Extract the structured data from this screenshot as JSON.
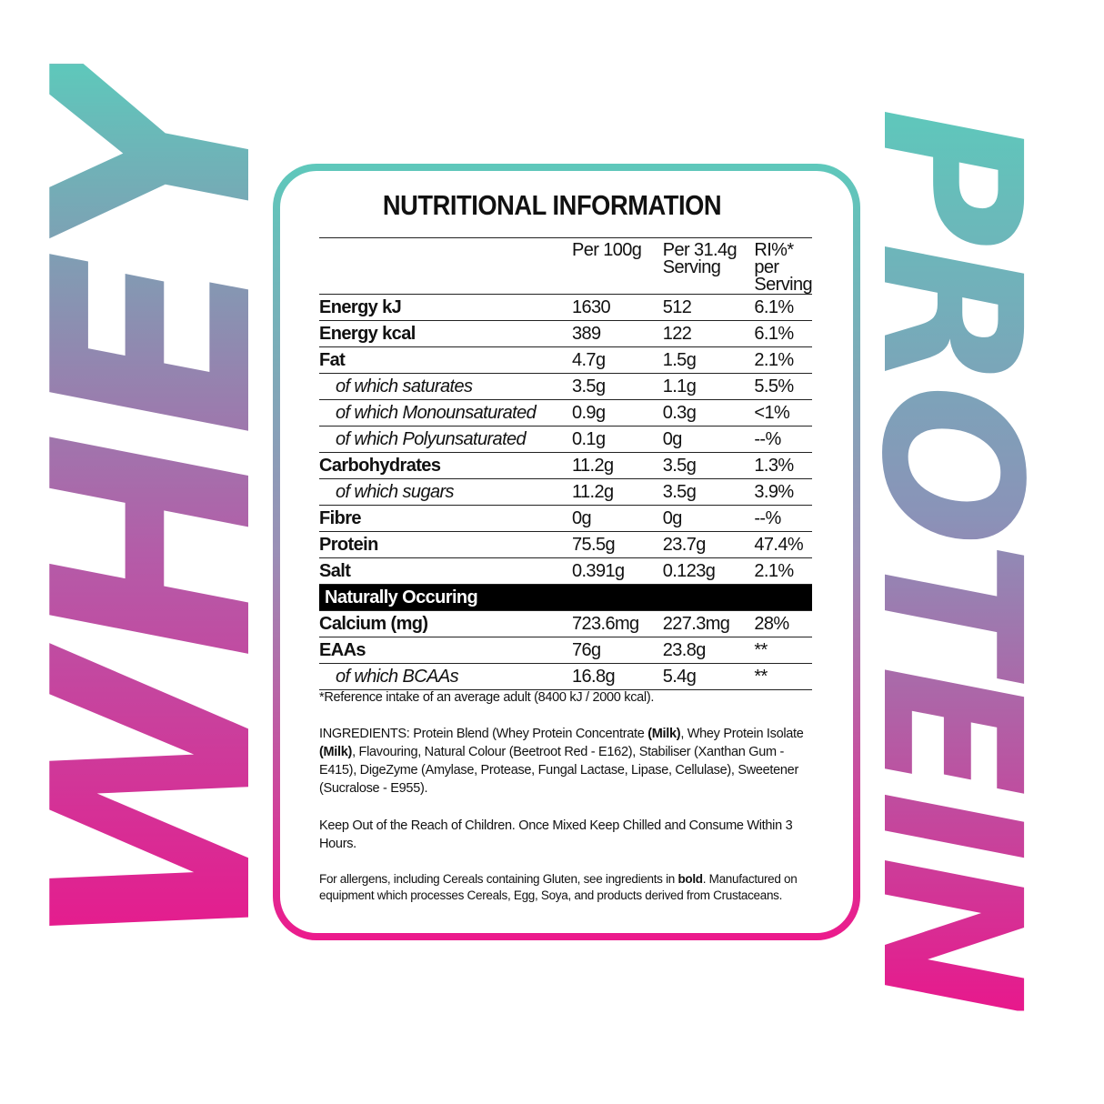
{
  "side_text": {
    "left": "WHEY",
    "right": "PROTEIN",
    "colors": {
      "teal": "#5ec8bb",
      "pink": "#e8188c"
    }
  },
  "title": "NUTRITIONAL INFORMATION",
  "columns": [
    "",
    "Per 100g",
    "Per 31.4g Serving",
    "RI%* per Serving"
  ],
  "rows": [
    {
      "label": "Energy kJ",
      "sub": false,
      "v": [
        "1630",
        "512",
        "6.1%"
      ]
    },
    {
      "label": "Energy kcal",
      "sub": false,
      "v": [
        "389",
        "122",
        "6.1%"
      ]
    },
    {
      "label": "Fat",
      "sub": false,
      "v": [
        "4.7g",
        "1.5g",
        "2.1%"
      ]
    },
    {
      "label": "of which saturates",
      "sub": true,
      "v": [
        "3.5g",
        "1.1g",
        "5.5%"
      ]
    },
    {
      "label": "of which Monounsaturated",
      "sub": true,
      "v": [
        "0.9g",
        "0.3g",
        "<1%"
      ]
    },
    {
      "label": "of which Polyunsaturated",
      "sub": true,
      "v": [
        "0.1g",
        "0g",
        "--%"
      ]
    },
    {
      "label": "Carbohydrates",
      "sub": false,
      "v": [
        "11.2g",
        "3.5g",
        "1.3%"
      ]
    },
    {
      "label": "of which sugars",
      "sub": true,
      "v": [
        "11.2g",
        "3.5g",
        "3.9%"
      ]
    },
    {
      "label": "Fibre",
      "sub": false,
      "v": [
        "0g",
        "0g",
        "--%"
      ]
    },
    {
      "label": "Protein",
      "sub": false,
      "v": [
        "75.5g",
        "23.7g",
        "47.4%"
      ]
    },
    {
      "label": "Salt",
      "sub": false,
      "v": [
        "0.391g",
        "0.123g",
        "2.1%"
      ]
    }
  ],
  "section_label": "Naturally Occuring",
  "rows2": [
    {
      "label": "Calcium (mg)",
      "sub": false,
      "v": [
        "723.6mg",
        "227.3mg",
        "28%"
      ]
    },
    {
      "label": "EAAs",
      "sub": false,
      "v": [
        "76g",
        "23.8g",
        "**"
      ]
    },
    {
      "label": "of which BCAAs",
      "sub": true,
      "v": [
        "16.8g",
        "5.4g",
        "**"
      ]
    }
  ],
  "footnote": "*Reference intake of an average adult (8400 kJ / 2000 kcal).",
  "ingredients": {
    "p1": "INGREDIENTS: Protein Blend (Whey Protein Concentrate ",
    "b1": "(Milk)",
    "p2": ", Whey Protein Isolate ",
    "b2": "(Milk)",
    "p3": ", Flavouring, Natural Colour (Beetroot Red - E162), Stabiliser (Xanthan Gum - E415), DigeZyme (Amylase, Protease, Fungal Lactase, Lipase, Cellulase), Sweetener (Sucralose - E955)."
  },
  "warning": "Keep Out of the Reach of Children. Once Mixed Keep Chilled and Consume Within 3 Hours.",
  "allergens": {
    "p1": "For allergens, including Cereals containing Gluten, see ingredients in ",
    "b1": "bold",
    "p2": ". Manufactured on equipment which processes Cereals, Egg, Soya, and products derived from Crustaceans."
  }
}
